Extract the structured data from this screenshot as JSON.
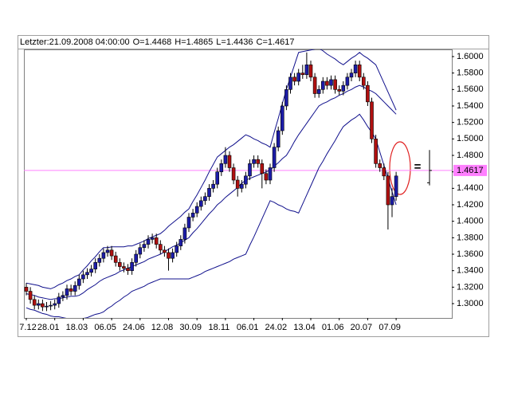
{
  "chart_data": {
    "type": "candlestick",
    "header": {
      "label": "Letzter:21.09.2008 04:00:00",
      "open_label": "O=",
      "open": 1.4468,
      "high_label": "H=",
      "high": 1.4865,
      "low_label": "L=",
      "low": 1.4436,
      "close_label": "C=",
      "close": 1.4617,
      "marker": "="
    },
    "categories": [
      "7.12",
      null,
      null,
      null,
      null,
      null,
      null,
      "28.01",
      null,
      null,
      null,
      null,
      null,
      null,
      "18.03",
      null,
      null,
      null,
      null,
      null,
      null,
      "06.05",
      null,
      null,
      null,
      null,
      null,
      null,
      "24.06",
      null,
      null,
      null,
      null,
      null,
      null,
      "12.08",
      null,
      null,
      null,
      null,
      null,
      null,
      "30.09",
      null,
      null,
      null,
      null,
      null,
      null,
      "18.11",
      null,
      null,
      null,
      null,
      null,
      null,
      "06.01",
      null,
      null,
      null,
      null,
      null,
      null,
      "24.02",
      null,
      null,
      null,
      null,
      null,
      null,
      "13.04",
      null,
      null,
      null,
      null,
      null,
      null,
      "01.06",
      null,
      null,
      null,
      null,
      null,
      null,
      "20.07",
      null,
      null,
      null,
      null,
      null,
      null,
      "07.09"
    ],
    "open": [
      1.32,
      1.315,
      1.305,
      1.298,
      1.3,
      1.296,
      1.297,
      1.298,
      1.3,
      1.308,
      1.31,
      1.318,
      1.315,
      1.322,
      1.33,
      1.335,
      1.338,
      1.342,
      1.35,
      1.355,
      1.362,
      1.365,
      1.358,
      1.35,
      1.345,
      1.343,
      1.34,
      1.35,
      1.36,
      1.368,
      1.372,
      1.378,
      1.38,
      1.372,
      1.365,
      1.362,
      1.355,
      1.362,
      1.37,
      1.378,
      1.392,
      1.405,
      1.41,
      1.418,
      1.425,
      1.43,
      1.44,
      1.445,
      1.46,
      1.47,
      1.48,
      1.465,
      1.45,
      1.44,
      1.445,
      1.455,
      1.47,
      1.475,
      1.47,
      1.458,
      1.45,
      1.465,
      1.49,
      1.51,
      1.54,
      1.56,
      1.575,
      1.57,
      1.58,
      1.578,
      1.59,
      1.575,
      1.555,
      1.56,
      1.57,
      1.565,
      1.572,
      1.56,
      1.558,
      1.565,
      1.575,
      1.58,
      1.59,
      1.575,
      1.565,
      1.545,
      1.5,
      1.47,
      1.465,
      1.455,
      1.42,
      1.43
    ],
    "high": [
      1.325,
      1.32,
      1.31,
      1.305,
      1.305,
      1.302,
      1.303,
      1.305,
      1.313,
      1.315,
      1.323,
      1.323,
      1.327,
      1.335,
      1.34,
      1.343,
      1.347,
      1.355,
      1.36,
      1.367,
      1.37,
      1.37,
      1.363,
      1.355,
      1.35,
      1.348,
      1.355,
      1.365,
      1.373,
      1.377,
      1.383,
      1.385,
      1.385,
      1.377,
      1.37,
      1.367,
      1.367,
      1.375,
      1.383,
      1.397,
      1.41,
      1.415,
      1.423,
      1.43,
      1.435,
      1.445,
      1.45,
      1.465,
      1.475,
      1.49,
      1.485,
      1.47,
      1.455,
      1.45,
      1.46,
      1.475,
      1.48,
      1.48,
      1.475,
      1.463,
      1.47,
      1.495,
      1.515,
      1.545,
      1.565,
      1.58,
      1.58,
      1.585,
      1.59,
      1.605,
      1.595,
      1.58,
      1.565,
      1.575,
      1.575,
      1.577,
      1.577,
      1.565,
      1.57,
      1.58,
      1.585,
      1.595,
      1.595,
      1.58,
      1.57,
      1.55,
      1.505,
      1.475,
      1.47,
      1.46,
      1.44,
      1.46
    ],
    "low": [
      1.31,
      1.3,
      1.293,
      1.293,
      1.291,
      1.291,
      1.292,
      1.293,
      1.295,
      1.303,
      1.305,
      1.31,
      1.31,
      1.317,
      1.325,
      1.33,
      1.333,
      1.337,
      1.345,
      1.35,
      1.357,
      1.353,
      1.345,
      1.34,
      1.338,
      1.335,
      1.335,
      1.345,
      1.355,
      1.363,
      1.367,
      1.373,
      1.367,
      1.36,
      1.357,
      1.34,
      1.35,
      1.357,
      1.365,
      1.373,
      1.387,
      1.4,
      1.405,
      1.413,
      1.42,
      1.425,
      1.435,
      1.44,
      1.455,
      1.465,
      1.46,
      1.445,
      1.43,
      1.435,
      1.44,
      1.45,
      1.465,
      1.465,
      1.44,
      1.445,
      1.445,
      1.46,
      1.485,
      1.505,
      1.535,
      1.555,
      1.565,
      1.565,
      1.573,
      1.573,
      1.57,
      1.55,
      1.55,
      1.555,
      1.56,
      1.56,
      1.555,
      1.553,
      1.553,
      1.56,
      1.57,
      1.575,
      1.57,
      1.56,
      1.54,
      1.495,
      1.465,
      1.46,
      1.45,
      1.39,
      1.405,
      1.425
    ],
    "close": [
      1.315,
      1.305,
      1.298,
      1.3,
      1.296,
      1.297,
      1.298,
      1.3,
      1.308,
      1.31,
      1.318,
      1.315,
      1.322,
      1.33,
      1.335,
      1.338,
      1.342,
      1.35,
      1.355,
      1.362,
      1.365,
      1.358,
      1.35,
      1.345,
      1.343,
      1.34,
      1.35,
      1.36,
      1.368,
      1.372,
      1.378,
      1.38,
      1.372,
      1.365,
      1.362,
      1.355,
      1.362,
      1.37,
      1.378,
      1.392,
      1.405,
      1.41,
      1.418,
      1.425,
      1.43,
      1.44,
      1.445,
      1.46,
      1.47,
      1.48,
      1.465,
      1.45,
      1.44,
      1.445,
      1.455,
      1.47,
      1.475,
      1.47,
      1.458,
      1.45,
      1.465,
      1.49,
      1.51,
      1.54,
      1.56,
      1.575,
      1.57,
      1.58,
      1.578,
      1.59,
      1.575,
      1.555,
      1.56,
      1.57,
      1.565,
      1.572,
      1.56,
      1.558,
      1.565,
      1.575,
      1.58,
      1.59,
      1.575,
      1.565,
      1.545,
      1.5,
      1.47,
      1.465,
      1.455,
      1.42,
      1.43,
      1.455
    ],
    "up_color": "#1c1ca8",
    "down_color": "#b01010",
    "bands": [
      {
        "color": "#10108c",
        "values": [
          1.325,
          1.324,
          1.323,
          1.322,
          1.32,
          1.319,
          1.318,
          1.32,
          1.323,
          1.325,
          1.328,
          1.33,
          1.333,
          1.335,
          1.341,
          1.346,
          1.352,
          1.357,
          1.363,
          1.368,
          1.368,
          1.369,
          1.369,
          1.369,
          1.369,
          1.37,
          1.37,
          1.372,
          1.374,
          1.376,
          1.379,
          1.381,
          1.383,
          1.385,
          1.389,
          1.394,
          1.398,
          1.402,
          1.406,
          1.411,
          1.415,
          1.424,
          1.432,
          1.441,
          1.45,
          1.46,
          1.469,
          1.478,
          1.482,
          1.486,
          1.49,
          1.493,
          1.497,
          1.501,
          1.505,
          1.503,
          1.5,
          1.498,
          1.495,
          1.493,
          1.49,
          1.508,
          1.525,
          1.543,
          1.56,
          1.575,
          1.59,
          1.605,
          1.606,
          1.607,
          1.608,
          1.609,
          1.61,
          1.607,
          1.603,
          1.6,
          1.597,
          1.593,
          1.59,
          1.594,
          1.598,
          1.601,
          1.605,
          1.601,
          1.598,
          1.594,
          1.59,
          1.579,
          1.568,
          1.557,
          1.546,
          1.535
        ]
      },
      {
        "color": "#10108c",
        "values": [
          1.312,
          1.311,
          1.31,
          1.308,
          1.307,
          1.306,
          1.305,
          1.306,
          1.306,
          1.307,
          1.308,
          1.309,
          1.309,
          1.31,
          1.313,
          1.317,
          1.32,
          1.323,
          1.327,
          1.33,
          1.332,
          1.334,
          1.336,
          1.339,
          1.341,
          1.343,
          1.345,
          1.347,
          1.349,
          1.351,
          1.354,
          1.356,
          1.358,
          1.36,
          1.363,
          1.366,
          1.369,
          1.371,
          1.374,
          1.377,
          1.38,
          1.386,
          1.391,
          1.397,
          1.403,
          1.409,
          1.414,
          1.42,
          1.424,
          1.429,
          1.433,
          1.437,
          1.441,
          1.446,
          1.45,
          1.452,
          1.454,
          1.456,
          1.458,
          1.46,
          1.462,
          1.467,
          1.471,
          1.476,
          1.48,
          1.488,
          1.497,
          1.505,
          1.512,
          1.519,
          1.526,
          1.533,
          1.54,
          1.543,
          1.545,
          1.548,
          1.55,
          1.553,
          1.555,
          1.558,
          1.56,
          1.563,
          1.565,
          1.563,
          1.56,
          1.558,
          1.555,
          1.55,
          1.545,
          1.54,
          1.535,
          1.53
        ]
      },
      {
        "color": "#10108c",
        "values": [
          1.295,
          1.293,
          1.292,
          1.29,
          1.288,
          1.287,
          1.285,
          1.284,
          1.284,
          1.283,
          1.282,
          1.282,
          1.281,
          1.28,
          1.282,
          1.283,
          1.285,
          1.287,
          1.288,
          1.29,
          1.294,
          1.297,
          1.301,
          1.304,
          1.308,
          1.311,
          1.315,
          1.317,
          1.319,
          1.321,
          1.324,
          1.326,
          1.328,
          1.33,
          1.33,
          1.33,
          1.33,
          1.33,
          1.33,
          1.33,
          1.33,
          1.332,
          1.334,
          1.336,
          1.339,
          1.341,
          1.343,
          1.345,
          1.347,
          1.349,
          1.351,
          1.354,
          1.356,
          1.358,
          1.36,
          1.371,
          1.381,
          1.392,
          1.403,
          1.414,
          1.425,
          1.423,
          1.42,
          1.418,
          1.415,
          1.413,
          1.412,
          1.41,
          1.421,
          1.432,
          1.443,
          1.454,
          1.465,
          1.473,
          1.482,
          1.49,
          1.498,
          1.507,
          1.515,
          1.519,
          1.523,
          1.526,
          1.53,
          1.523,
          1.515,
          1.508,
          1.5,
          1.484,
          1.468,
          1.452,
          1.436,
          1.42
        ]
      }
    ],
    "last_price_color": "#ff80ff",
    "ylim": [
      1.2826,
      1.6087
    ],
    "yticks": [
      {
        "value": 1.3,
        "label": "1.3000"
      },
      {
        "value": 1.32,
        "label": "1.3200"
      },
      {
        "value": 1.34,
        "label": "1.3400"
      },
      {
        "value": 1.36,
        "label": "1.3600"
      },
      {
        "value": 1.38,
        "label": "1.3800"
      },
      {
        "value": 1.4,
        "label": "1.4000"
      },
      {
        "value": 1.42,
        "label": "1.4200"
      },
      {
        "value": 1.44,
        "label": "1.4400"
      },
      {
        "value": 1.46,
        "label": "1.4600"
      },
      {
        "value": 1.48,
        "label": "1.4800"
      },
      {
        "value": 1.5,
        "label": "1.5000"
      },
      {
        "value": 1.52,
        "label": "1.5200"
      },
      {
        "value": 1.54,
        "label": "1.5400"
      },
      {
        "value": 1.56,
        "label": "1.5600"
      },
      {
        "value": 1.58,
        "label": "1.5800"
      },
      {
        "value": 1.6,
        "label": "1.6000"
      }
    ]
  }
}
